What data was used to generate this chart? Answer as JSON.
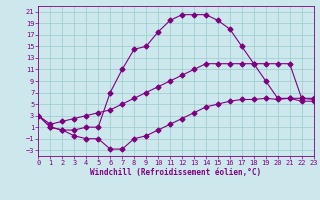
{
  "xlabel": "Windchill (Refroidissement éolien,°C)",
  "bg_color": "#cce8ec",
  "line_color": "#800080",
  "grid_color": "#99cccc",
  "curve1_x": [
    0,
    1,
    2,
    3,
    4,
    5,
    6,
    7,
    8,
    9,
    10,
    11,
    12,
    13,
    14,
    15,
    16,
    17,
    18,
    19,
    20,
    21,
    22,
    23
  ],
  "curve1_y": [
    3,
    1,
    0.5,
    0.5,
    1,
    1,
    7,
    11,
    14.5,
    15,
    17.5,
    19.5,
    20.5,
    20.5,
    20.5,
    19.5,
    18,
    15,
    12,
    9,
    6,
    6,
    5.5,
    5.5
  ],
  "curve2_x": [
    0,
    1,
    2,
    3,
    4,
    5,
    6,
    7,
    8,
    9,
    10,
    11,
    12,
    13,
    14,
    15,
    16,
    17,
    18,
    19,
    20,
    21,
    22,
    23
  ],
  "curve2_y": [
    3,
    1.5,
    2,
    2.5,
    3,
    3.5,
    4,
    5,
    6,
    7,
    8,
    9,
    10,
    11,
    12,
    12,
    12,
    12,
    12,
    12,
    12,
    12,
    6,
    6
  ],
  "curve3_x": [
    0,
    1,
    2,
    3,
    4,
    5,
    6,
    7,
    8,
    9,
    10,
    11,
    12,
    13,
    14,
    15,
    16,
    17,
    18,
    19,
    20,
    21,
    22,
    23
  ],
  "curve3_y": [
    3,
    1,
    0.5,
    -0.5,
    -1,
    -1,
    -2.8,
    -2.8,
    -1,
    -0.5,
    0.5,
    1.5,
    2.5,
    3.5,
    4.5,
    5,
    5.5,
    5.8,
    5.8,
    6,
    5.8,
    6,
    6,
    5.8
  ],
  "xlim": [
    0,
    23
  ],
  "ylim": [
    -4,
    22
  ],
  "yticks": [
    -3,
    -1,
    1,
    3,
    5,
    7,
    9,
    11,
    13,
    15,
    17,
    19,
    21
  ],
  "xticks": [
    0,
    1,
    2,
    3,
    4,
    5,
    6,
    7,
    8,
    9,
    10,
    11,
    12,
    13,
    14,
    15,
    16,
    17,
    18,
    19,
    20,
    21,
    22,
    23
  ]
}
